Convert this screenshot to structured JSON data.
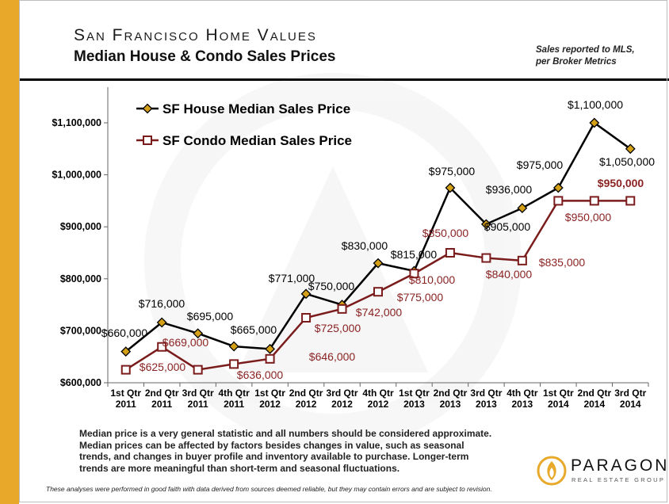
{
  "header": {
    "title": "San Francisco Home Values",
    "subtitle": "Median House & Condo Sales Prices",
    "source_note": [
      "Sales reported to MLS,",
      "per Broker Metrics"
    ]
  },
  "chart_data": {
    "type": "line",
    "categories": [
      [
        "1st Qtr",
        "2011"
      ],
      [
        "2nd Qtr",
        "2011"
      ],
      [
        "3rd Qtr",
        "2011"
      ],
      [
        "4th Qtr",
        "2011"
      ],
      [
        "1st Qtr",
        "2012"
      ],
      [
        "2nd Qtr",
        "2012"
      ],
      [
        "3rd Qtr",
        "2012"
      ],
      [
        "4th Qtr",
        "2012"
      ],
      [
        "1st Qtr",
        "2013"
      ],
      [
        "2nd Qtr",
        "2013"
      ],
      [
        "3rd Qtr",
        "2013"
      ],
      [
        "4th Qtr",
        "2013"
      ],
      [
        "1st Qtr",
        "2014"
      ],
      [
        "2nd Qtr",
        "2014"
      ],
      [
        "3rd Qtr",
        "2014"
      ]
    ],
    "yticks": [
      600000,
      700000,
      800000,
      900000,
      1000000,
      1100000
    ],
    "ytick_labels": [
      "$600,000",
      "$700,000",
      "$800,000",
      "$900,000",
      "$1,000,000",
      "$1,100,000"
    ],
    "ylim": [
      600000,
      1100000
    ],
    "grid": false,
    "legend_position": "top-left",
    "series": [
      {
        "name": "SF House Median Sales Price",
        "color": "#000000",
        "marker": "diamond",
        "marker_fill": "#d4a017",
        "values": [
          660000,
          716000,
          695000,
          670000,
          665000,
          771000,
          750000,
          830000,
          815000,
          975000,
          905000,
          936000,
          975000,
          1100000,
          1050000
        ],
        "labels": [
          "$660,000",
          "$716,000",
          "$695,000",
          "",
          "$665,000",
          "$771,000",
          "$750,000",
          "$830,000",
          "$815,000",
          "$975,000",
          "$905,000",
          "$936,000",
          "$975,000",
          "$1,100,000",
          "$1,050,000"
        ]
      },
      {
        "name": "SF Condo Median Sales Price",
        "color": "#7b1c1c",
        "marker": "square",
        "marker_fill": "#ffffff",
        "values": [
          625000,
          669000,
          625000,
          636000,
          646000,
          725000,
          742000,
          775000,
          810000,
          850000,
          840000,
          835000,
          950000,
          950000,
          950000
        ],
        "labels": [
          "$625,000",
          "$669,000",
          "",
          "$636,000",
          "$646,000",
          "$725,000",
          "$742,000",
          "$775,000",
          "$810,000",
          "$850,000",
          "$840,000",
          "$835,000",
          "$950,000",
          "",
          "$950,000"
        ]
      }
    ]
  },
  "caption": [
    "Median price is a very general statistic and all numbers should be considered approximate.",
    "Median prices can be affected by factors besides changes in value, such as seasonal",
    "trends, and changes in buyer profile and inventory available to purchase. Longer-term",
    "trends are more meaningful than short-term and seasonal fluctuations."
  ],
  "disclaimer": "These analyses were performed in good faith with data derived from sources deemed reliable, but they may contain errors and are subject to revision.",
  "logo": {
    "name": "PARAGON",
    "tagline": "REAL ESTATE GROUP",
    "icon": "flame-logo-icon"
  }
}
